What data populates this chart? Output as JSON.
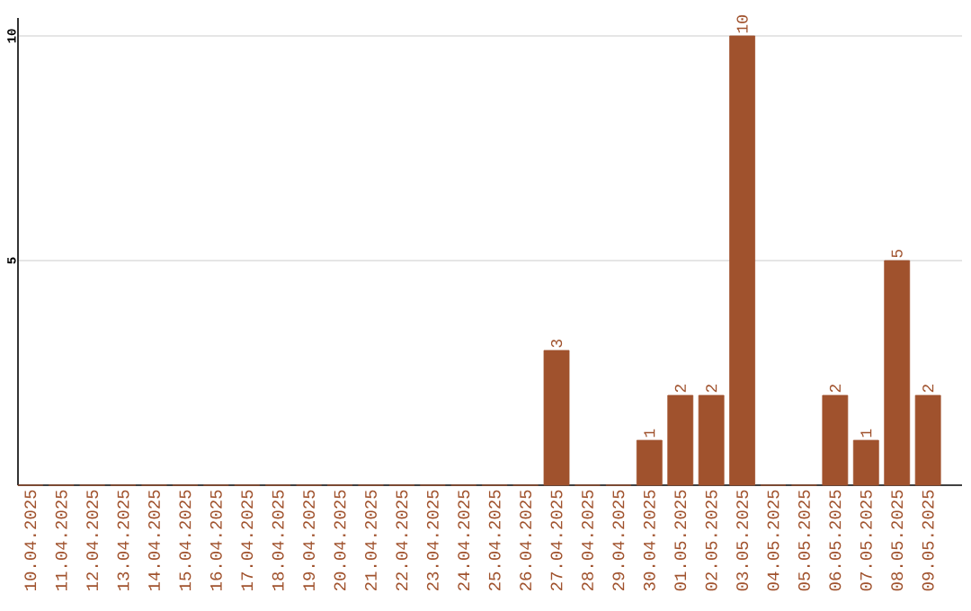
{
  "chart_data": {
    "type": "bar",
    "categories": [
      "10.04.2025",
      "11.04.2025",
      "12.04.2025",
      "13.04.2025",
      "14.04.2025",
      "15.04.2025",
      "16.04.2025",
      "17.04.2025",
      "18.04.2025",
      "19.04.2025",
      "20.04.2025",
      "21.04.2025",
      "22.04.2025",
      "23.04.2025",
      "24.04.2025",
      "25.04.2025",
      "26.04.2025",
      "27.04.2025",
      "28.04.2025",
      "29.04.2025",
      "30.04.2025",
      "01.05.2025",
      "02.05.2025",
      "03.05.2025",
      "04.05.2025",
      "05.05.2025",
      "06.05.2025",
      "07.05.2025",
      "08.05.2025",
      "09.05.2025"
    ],
    "values": [
      0,
      0,
      0,
      0,
      0,
      0,
      0,
      0,
      0,
      0,
      0,
      0,
      0,
      0,
      0,
      0,
      0,
      3,
      0,
      0,
      1,
      2,
      2,
      10,
      0,
      0,
      2,
      1,
      5,
      2
    ],
    "value_labels": [
      null,
      null,
      null,
      null,
      null,
      null,
      null,
      null,
      null,
      null,
      null,
      null,
      null,
      null,
      null,
      null,
      null,
      "3",
      null,
      null,
      "1",
      "2",
      "2",
      "10",
      null,
      null,
      "2",
      "1",
      "5",
      "2"
    ],
    "color": "#a0522d",
    "ylim": [
      0,
      10.4
    ],
    "yticks": [
      5,
      10
    ],
    "grid": "y"
  }
}
